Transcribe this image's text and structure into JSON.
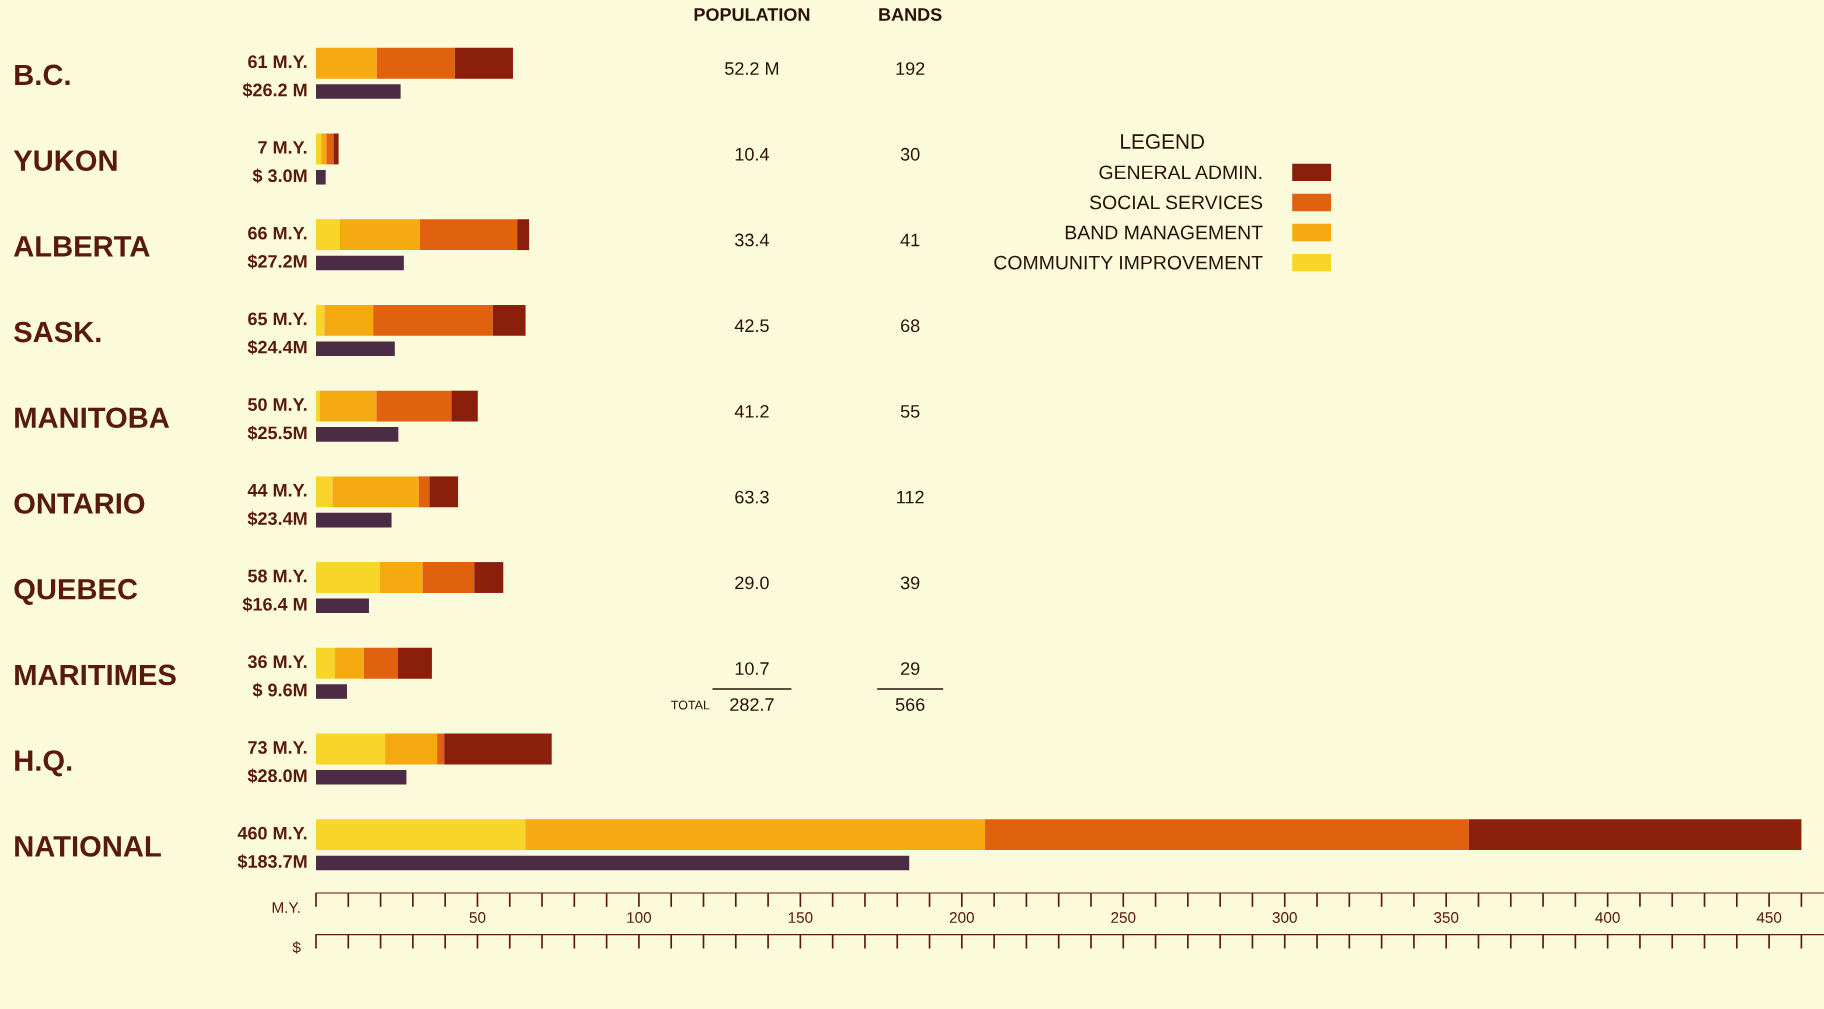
{
  "chart_data": [
    {
      "type": "bar",
      "orientation": "horizontal",
      "stacked": true,
      "categories": [
        "B.C.",
        "YUKON",
        "ALBERTA",
        "SASK.",
        "MANITOBA",
        "ONTARIO",
        "QUEBEC",
        "MARITIMES",
        "H.Q.",
        "NATIONAL"
      ],
      "series": [
        {
          "name": "COMMUNITY IMPROVEMENT",
          "color": "#f9d52a",
          "values": [
            0,
            1.6,
            7.3,
            2.6,
            1.1,
            5.1,
            19.8,
            5.8,
            21.4,
            64.8
          ]
        },
        {
          "name": "BAND MANAGEMENT",
          "color": "#f6aa12",
          "values": [
            18.8,
            1.6,
            24.9,
            15.1,
            17.6,
            26.7,
            13.2,
            9.0,
            16.1,
            142.4
          ]
        },
        {
          "name": "SOCIAL SERVICES",
          "color": "#e0620f",
          "values": [
            24.2,
            2.2,
            30.1,
            37.0,
            23.2,
            3.3,
            16.0,
            10.6,
            2.2,
            149.8
          ]
        },
        {
          "name": "GENERAL ADMIN.",
          "color": "#8a1f0c",
          "values": [
            18.0,
            1.6,
            3.7,
            10.2,
            8.2,
            8.9,
            9.0,
            10.5,
            33.3,
            103.0
          ]
        }
      ],
      "totals": [
        "61 M.Y.",
        "7 M.Y.",
        "66 M.Y.",
        "65 M.Y.",
        "50 M.Y.",
        "44 M.Y.",
        "58 M.Y.",
        "36 M.Y.",
        "73 M.Y.",
        "460 M.Y."
      ],
      "xlabel": "M.Y.",
      "xlim": [
        0,
        467
      ],
      "xticks": [
        {
          "value": 0,
          "label": null
        },
        {
          "value": 10,
          "label": null
        },
        {
          "value": 20,
          "label": null
        },
        {
          "value": 30,
          "label": null
        },
        {
          "value": 40,
          "label": null
        },
        50,
        {
          "value": 60,
          "label": null
        },
        {
          "value": 70,
          "label": null
        },
        {
          "value": 80,
          "label": null
        },
        {
          "value": 90,
          "label": null
        },
        100,
        {
          "value": 110,
          "label": null
        },
        {
          "value": 120,
          "label": null
        },
        {
          "value": 130,
          "label": null
        },
        {
          "value": 140,
          "label": null
        },
        150,
        {
          "value": 160,
          "label": null
        },
        {
          "value": 170,
          "label": null
        },
        {
          "value": 180,
          "label": null
        },
        {
          "value": 190,
          "label": null
        },
        200,
        {
          "value": 210,
          "label": null
        },
        {
          "value": 220,
          "label": null
        },
        {
          "value": 230,
          "label": null
        },
        {
          "value": 240,
          "label": null
        },
        250,
        {
          "value": 260,
          "label": null
        },
        {
          "value": 270,
          "label": null
        },
        {
          "value": 280,
          "label": null
        },
        {
          "value": 290,
          "label": null
        },
        300,
        {
          "value": 310,
          "label": null
        },
        {
          "value": 320,
          "label": null
        },
        {
          "value": 330,
          "label": null
        },
        {
          "value": 340,
          "label": null
        },
        350,
        {
          "value": 360,
          "label": null
        },
        {
          "value": 370,
          "label": null
        },
        {
          "value": 380,
          "label": null
        },
        {
          "value": 390,
          "label": null
        },
        400,
        {
          "value": 410,
          "label": null
        },
        {
          "value": 420,
          "label": null
        },
        {
          "value": 430,
          "label": null
        },
        {
          "value": 440,
          "label": null
        },
        450,
        {
          "value": 460,
          "label": null
        }
      ],
      "legend": "top right",
      "legend_title": "LEGEND",
      "annotations": [
        "POPULATION",
        "BANDS",
        "52.2 M",
        "192",
        "10.4",
        "30",
        "33.4",
        "41",
        "42.5",
        "68",
        "41.2",
        "55",
        "63.3",
        "112",
        "29.0",
        "39",
        "10.7",
        "29",
        "TOTAL",
        "282.7",
        "566"
      ]
    },
    {
      "type": "bar",
      "orientation": "horizontal",
      "categories": [
        null,
        null,
        null,
        null,
        null,
        null,
        null,
        null,
        null,
        null
      ],
      "series": [
        {
          "color": "#4c2b45",
          "values": [
            26.2,
            3.0,
            27.2,
            24.4,
            25.5,
            23.4,
            16.4,
            9.6,
            28.0,
            183.7
          ],
          "value_labels": [
            "$26.2 M",
            "$ 3.0M",
            "$27.2M",
            "$24.4M",
            "$25.5M",
            "$23.4M",
            "$16.4 M",
            "$ 9.6M",
            "$28.0M",
            "$183.7M"
          ]
        }
      ],
      "xlabel": "$",
      "xlim": [
        0,
        467
      ]
    }
  ]
}
